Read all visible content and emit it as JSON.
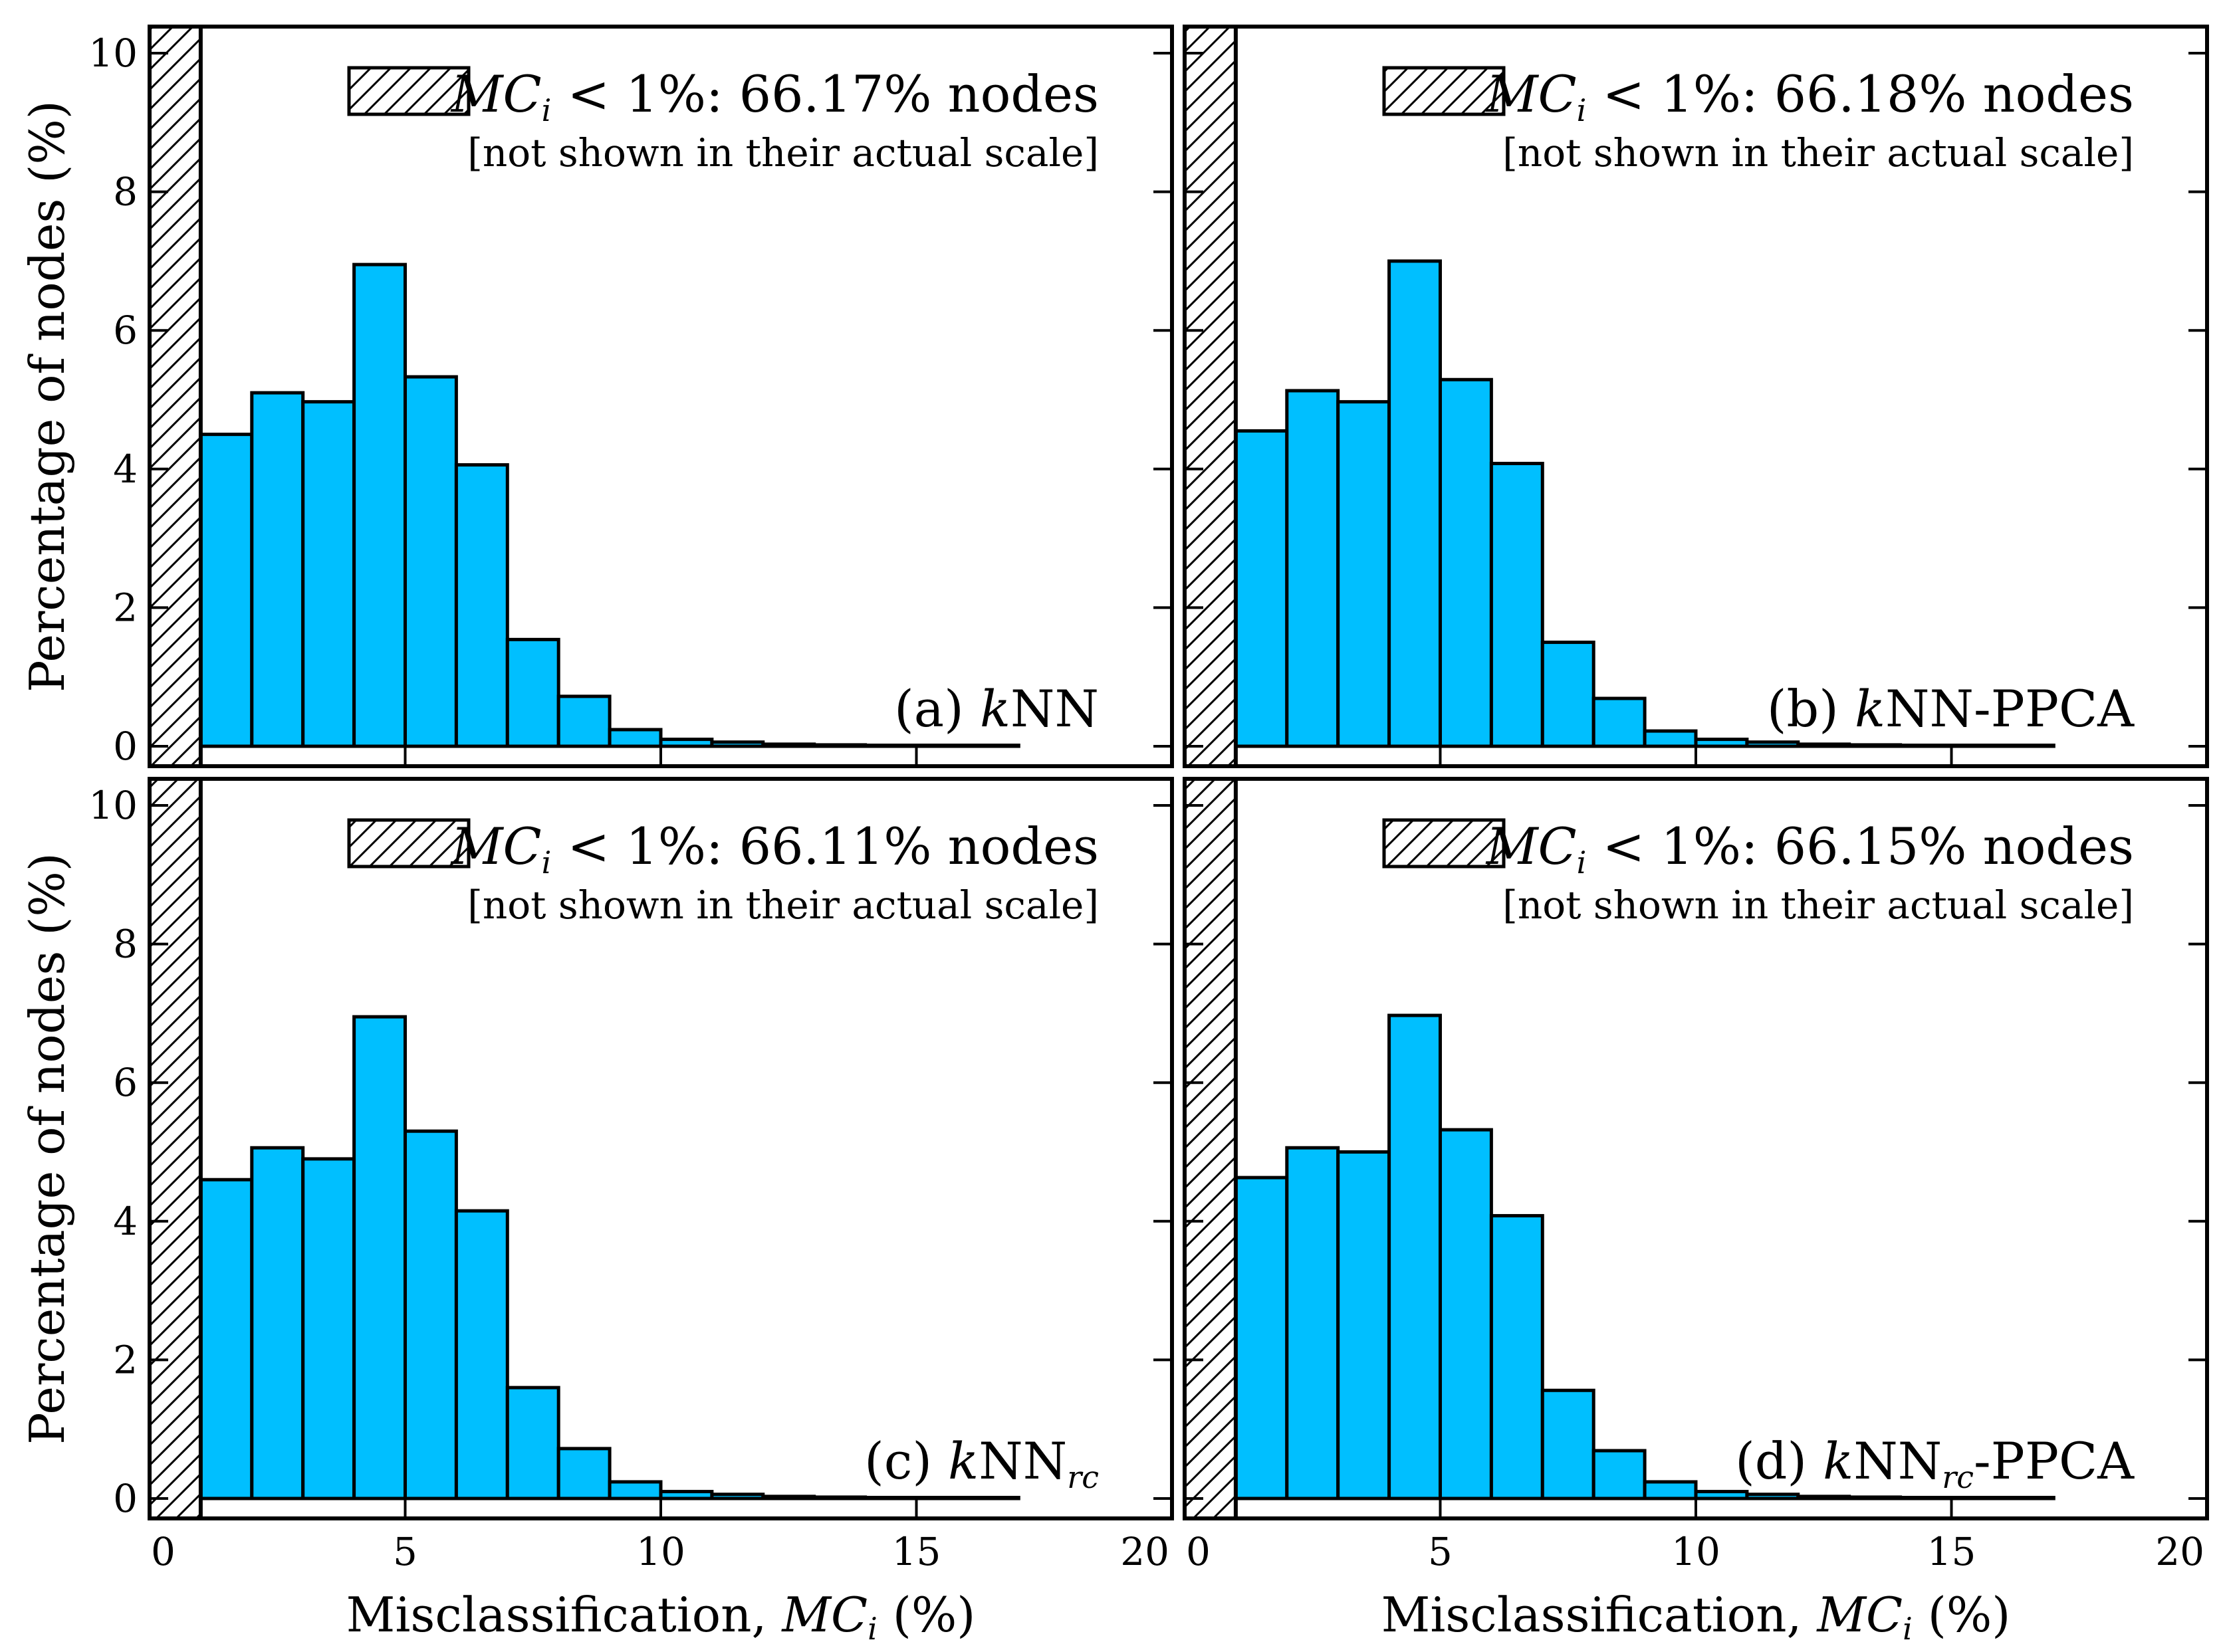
{
  "figure": {
    "ylabel": "Percentage of nodes (%)",
    "xlabel_prefix": "Misclassification, ",
    "xlabel_italic": "MC",
    "xlabel_sub": "i",
    "xlabel_suffix": " (%)"
  },
  "legend_common": {
    "mc": "MC",
    "mc_sub": "i",
    "threshold": " < 1%: ",
    "note": "[not shown in their actual scale]"
  },
  "colors": {
    "bar_fill": "#00bfff",
    "bar_stroke": "#000000",
    "hatch": "#000000"
  },
  "chart_data": [
    {
      "type": "bar",
      "title": "(a) kNN",
      "label_prefix": "(a) ",
      "label_k": "k",
      "label_main": "NN",
      "label_sub": "",
      "label_suffix": "",
      "legend_value": "66.17% nodes",
      "bin_width": 1,
      "bin_starts": [
        1,
        2,
        3,
        4,
        5,
        6,
        7,
        8,
        9,
        10,
        11,
        12,
        13,
        14,
        15,
        16,
        17,
        18,
        19
      ],
      "values": [
        4.5,
        5.1,
        4.97,
        6.95,
        5.33,
        4.06,
        1.54,
        0.72,
        0.24,
        0.1,
        0.06,
        0.03,
        0.02,
        0.01,
        0.01,
        0.005,
        0.0,
        0.0,
        0.0
      ],
      "hatched_bar": {
        "range": [
          0,
          1
        ],
        "value": 66.17
      },
      "xlim": [
        0,
        20
      ],
      "ylim": [
        0,
        10
      ],
      "xticks": [
        0,
        5,
        10,
        15,
        20
      ],
      "yticks": [
        0,
        2,
        4,
        6,
        8,
        10
      ]
    },
    {
      "type": "bar",
      "title": "(b) kNN-PPCA",
      "label_prefix": "(b) ",
      "label_k": "k",
      "label_main": "NN",
      "label_sub": "",
      "label_suffix": "-PPCA",
      "legend_value": "66.18% nodes",
      "bin_width": 1,
      "bin_starts": [
        1,
        2,
        3,
        4,
        5,
        6,
        7,
        8,
        9,
        10,
        11,
        12,
        13,
        14,
        15,
        16,
        17,
        18,
        19
      ],
      "values": [
        4.55,
        5.13,
        4.97,
        7.0,
        5.29,
        4.08,
        1.5,
        0.69,
        0.22,
        0.1,
        0.06,
        0.03,
        0.02,
        0.01,
        0.01,
        0.005,
        0.0,
        0.0,
        0.0
      ],
      "hatched_bar": {
        "range": [
          0,
          1
        ],
        "value": 66.18
      },
      "xlim": [
        0,
        20
      ],
      "ylim": [
        0,
        10
      ],
      "xticks": [
        0,
        5,
        10,
        15,
        20
      ],
      "yticks": [
        0,
        2,
        4,
        6,
        8,
        10
      ]
    },
    {
      "type": "bar",
      "title": "(c) kNNrc",
      "label_prefix": "(c) ",
      "label_k": "k",
      "label_main": "NN",
      "label_sub": "rc",
      "label_suffix": "",
      "legend_value": "66.11% nodes",
      "bin_width": 1,
      "bin_starts": [
        1,
        2,
        3,
        4,
        5,
        6,
        7,
        8,
        9,
        10,
        11,
        12,
        13,
        14,
        15,
        16,
        17,
        18,
        19
      ],
      "values": [
        4.6,
        5.06,
        4.9,
        6.95,
        5.3,
        4.15,
        1.6,
        0.72,
        0.24,
        0.1,
        0.06,
        0.03,
        0.02,
        0.01,
        0.01,
        0.005,
        0.0,
        0.0,
        0.0
      ],
      "hatched_bar": {
        "range": [
          0,
          1
        ],
        "value": 66.11
      },
      "xlim": [
        0,
        20
      ],
      "ylim": [
        0,
        10
      ],
      "xticks": [
        0,
        5,
        10,
        15,
        20
      ],
      "yticks": [
        0,
        2,
        4,
        6,
        8,
        10
      ]
    },
    {
      "type": "bar",
      "title": "(d) kNNrc-PPCA",
      "label_prefix": "(d) ",
      "label_k": "k",
      "label_main": "NN",
      "label_sub": "rc",
      "label_suffix": "-PPCA",
      "legend_value": "66.15% nodes",
      "bin_width": 1,
      "bin_starts": [
        1,
        2,
        3,
        4,
        5,
        6,
        7,
        8,
        9,
        10,
        11,
        12,
        13,
        14,
        15,
        16,
        17,
        18,
        19
      ],
      "values": [
        4.63,
        5.06,
        5.0,
        6.97,
        5.32,
        4.08,
        1.56,
        0.69,
        0.24,
        0.1,
        0.06,
        0.03,
        0.02,
        0.01,
        0.01,
        0.005,
        0.0,
        0.0,
        0.0
      ],
      "hatched_bar": {
        "range": [
          0,
          1
        ],
        "value": 66.15
      },
      "xlim": [
        0,
        20
      ],
      "ylim": [
        0,
        10
      ],
      "xticks": [
        0,
        5,
        10,
        15,
        20
      ],
      "yticks": [
        0,
        2,
        4,
        6,
        8,
        10
      ]
    }
  ]
}
